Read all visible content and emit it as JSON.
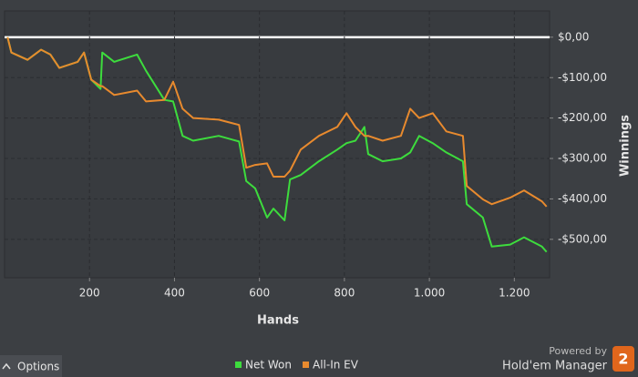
{
  "chart_data": {
    "type": "line",
    "x_label": "Hands",
    "y_label": "Winnings",
    "x": [
      7,
      16,
      54,
      86,
      108,
      129,
      172,
      187,
      204,
      226,
      230,
      258,
      312,
      333,
      376,
      397,
      419,
      444,
      504,
      552,
      569,
      590,
      618,
      633,
      659,
      672,
      697,
      740,
      783,
      805,
      826,
      847,
      856,
      890,
      933,
      955,
      976,
      1008,
      1040,
      1079,
      1088,
      1126,
      1147,
      1190,
      1223,
      1265,
      1276
    ],
    "series": [
      {
        "name": "Net Won",
        "color": "#3ddc3d",
        "values": [
          0,
          -38,
          -56,
          -31,
          -43,
          -76,
          -61,
          -38,
          -105,
          -128,
          -38,
          -61,
          -43,
          -83,
          -155,
          -159,
          -244,
          -256,
          -244,
          -258,
          -356,
          -374,
          -446,
          -424,
          -453,
          -352,
          -341,
          -307,
          -278,
          -262,
          -256,
          -222,
          -289,
          -307,
          -300,
          -285,
          -244,
          -262,
          -285,
          -307,
          -413,
          -446,
          -518,
          -513,
          -495,
          -518,
          -531
        ]
      },
      {
        "name": "All-In EV",
        "color": "#e88a2e",
        "values": [
          0,
          -38,
          -56,
          -31,
          -43,
          -76,
          -61,
          -38,
          -105,
          -121,
          -121,
          -143,
          -132,
          -159,
          -155,
          -110,
          -177,
          -200,
          -204,
          -217,
          -323,
          -316,
          -312,
          -345,
          -345,
          -330,
          -278,
          -244,
          -222,
          -188,
          -222,
          -244,
          -244,
          -256,
          -244,
          -177,
          -200,
          -188,
          -233,
          -244,
          -368,
          -401,
          -413,
          -397,
          -379,
          -406,
          -419
        ]
      }
    ],
    "xlim": [
      0,
      1283
    ],
    "ylim": [
      -595,
      65
    ],
    "xticks": [
      200,
      400,
      600,
      800,
      {
        "value": 1000,
        "label": "1.000"
      },
      {
        "value": 1200,
        "label": "1.200"
      }
    ],
    "yticks": [
      {
        "value": 0,
        "label": "$0,00"
      },
      {
        "value": -100,
        "label": "-$100,00"
      },
      {
        "value": -200,
        "label": "-$200,00"
      },
      {
        "value": -300,
        "label": "-$300,00"
      },
      {
        "value": -400,
        "label": "-$400,00"
      },
      {
        "value": -500,
        "label": "-$500,00"
      }
    ],
    "grid": true,
    "legend": "bottom"
  },
  "ui": {
    "options_button": "Options",
    "powered_by": "Powered by",
    "brand": "Hold'em Manager",
    "logo": "2"
  }
}
